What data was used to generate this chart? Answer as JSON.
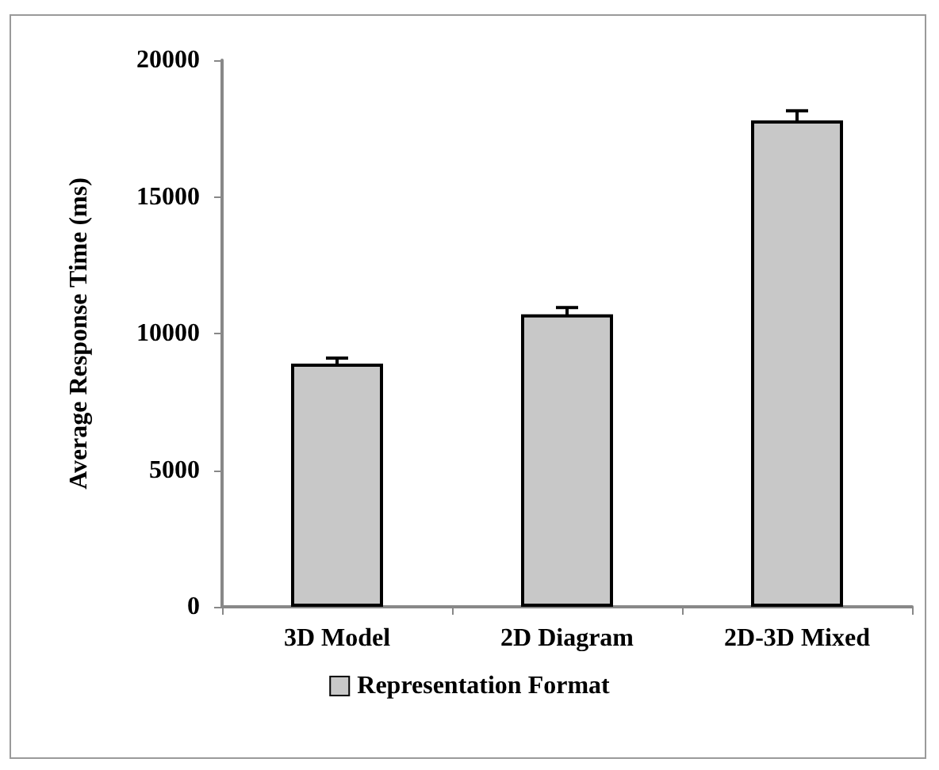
{
  "chart_data": {
    "type": "bar",
    "ylabel": "Average Response Time (ms)",
    "categories": [
      "3D Model",
      "2D Diagram",
      "2D-3D Mixed"
    ],
    "series": [
      {
        "name": "Representation Format",
        "color": "#c8c8c8",
        "values": [
          8900,
          10700,
          17800
        ],
        "errors": [
          200,
          250,
          350
        ]
      }
    ],
    "ylim": [
      0,
      20000
    ],
    "yticks": [
      0,
      5000,
      10000,
      15000,
      20000
    ],
    "grid": false,
    "legend": "bottom"
  }
}
